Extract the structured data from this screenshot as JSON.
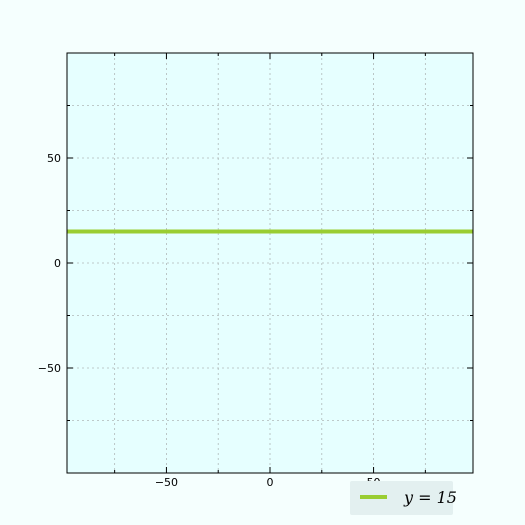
{
  "chart_data": {
    "type": "line",
    "title": "",
    "xlabel": "",
    "ylabel": "",
    "xlim": [
      -98,
      98
    ],
    "ylim": [
      -100,
      100
    ],
    "x_ticks": [
      -50,
      0,
      50
    ],
    "x_tick_labels": [
      "−50",
      "0",
      "50"
    ],
    "y_ticks": [
      -50,
      0,
      50
    ],
    "y_tick_labels": [
      "−50",
      "0",
      "50"
    ],
    "grid": true,
    "grid_step": 25,
    "legend_position": "below-right",
    "series": [
      {
        "name": "y = 15",
        "x": [
          -98,
          98
        ],
        "y": [
          15,
          15
        ],
        "color": "#9acd32"
      }
    ]
  },
  "colors": {
    "page_background": "#f5fffe",
    "plot_background": "#e6ffff",
    "grid": "#b0b8b8",
    "axis": "#000000",
    "legend_background": "#e3f0f0"
  }
}
